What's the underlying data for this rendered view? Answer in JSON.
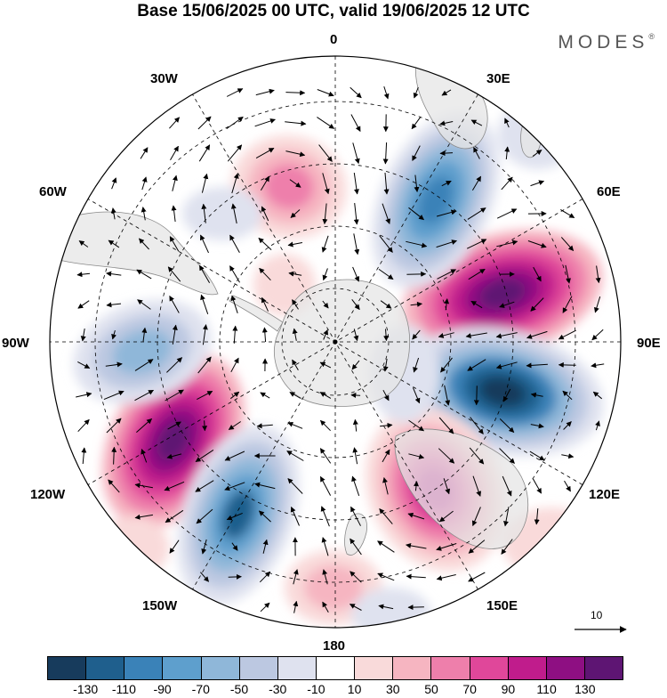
{
  "title": "Base 15/06/2025 00 UTC, valid 19/06/2025 12 UTC",
  "brand": "MODES",
  "brand_mark": "®",
  "longitude_labels": {
    "lon_0": "0",
    "lon_30e": "30E",
    "lon_60e": "60E",
    "lon_90e": "90E",
    "lon_120e": "120E",
    "lon_150e": "150E",
    "lon_180": "180",
    "lon_150w": "150W",
    "lon_120w": "120W",
    "lon_90w": "90W",
    "lon_60w": "60W",
    "lon_30w": "30W"
  },
  "reference_vector_value": "10",
  "colorbar": {
    "colors": [
      "#173b5c",
      "#1f5f8d",
      "#3a82b8",
      "#5e9fcd",
      "#8fb7d9",
      "#bcc8e1",
      "#dfe2ef",
      "#ffffff",
      "#f9dada",
      "#f6b5c1",
      "#ee7fab",
      "#e0479a",
      "#c01c8c",
      "#8e0f82",
      "#5e1573"
    ],
    "labels": [
      "-130",
      "-110",
      "-90",
      "-70",
      "-50",
      "-30",
      "-10",
      "10",
      "30",
      "50",
      "70",
      "90",
      "110",
      "130"
    ]
  },
  "colors": {
    "land": "#e6e6e6",
    "coast": "#8a8a8a",
    "vectors": "#000000",
    "grid": "#000000"
  }
}
